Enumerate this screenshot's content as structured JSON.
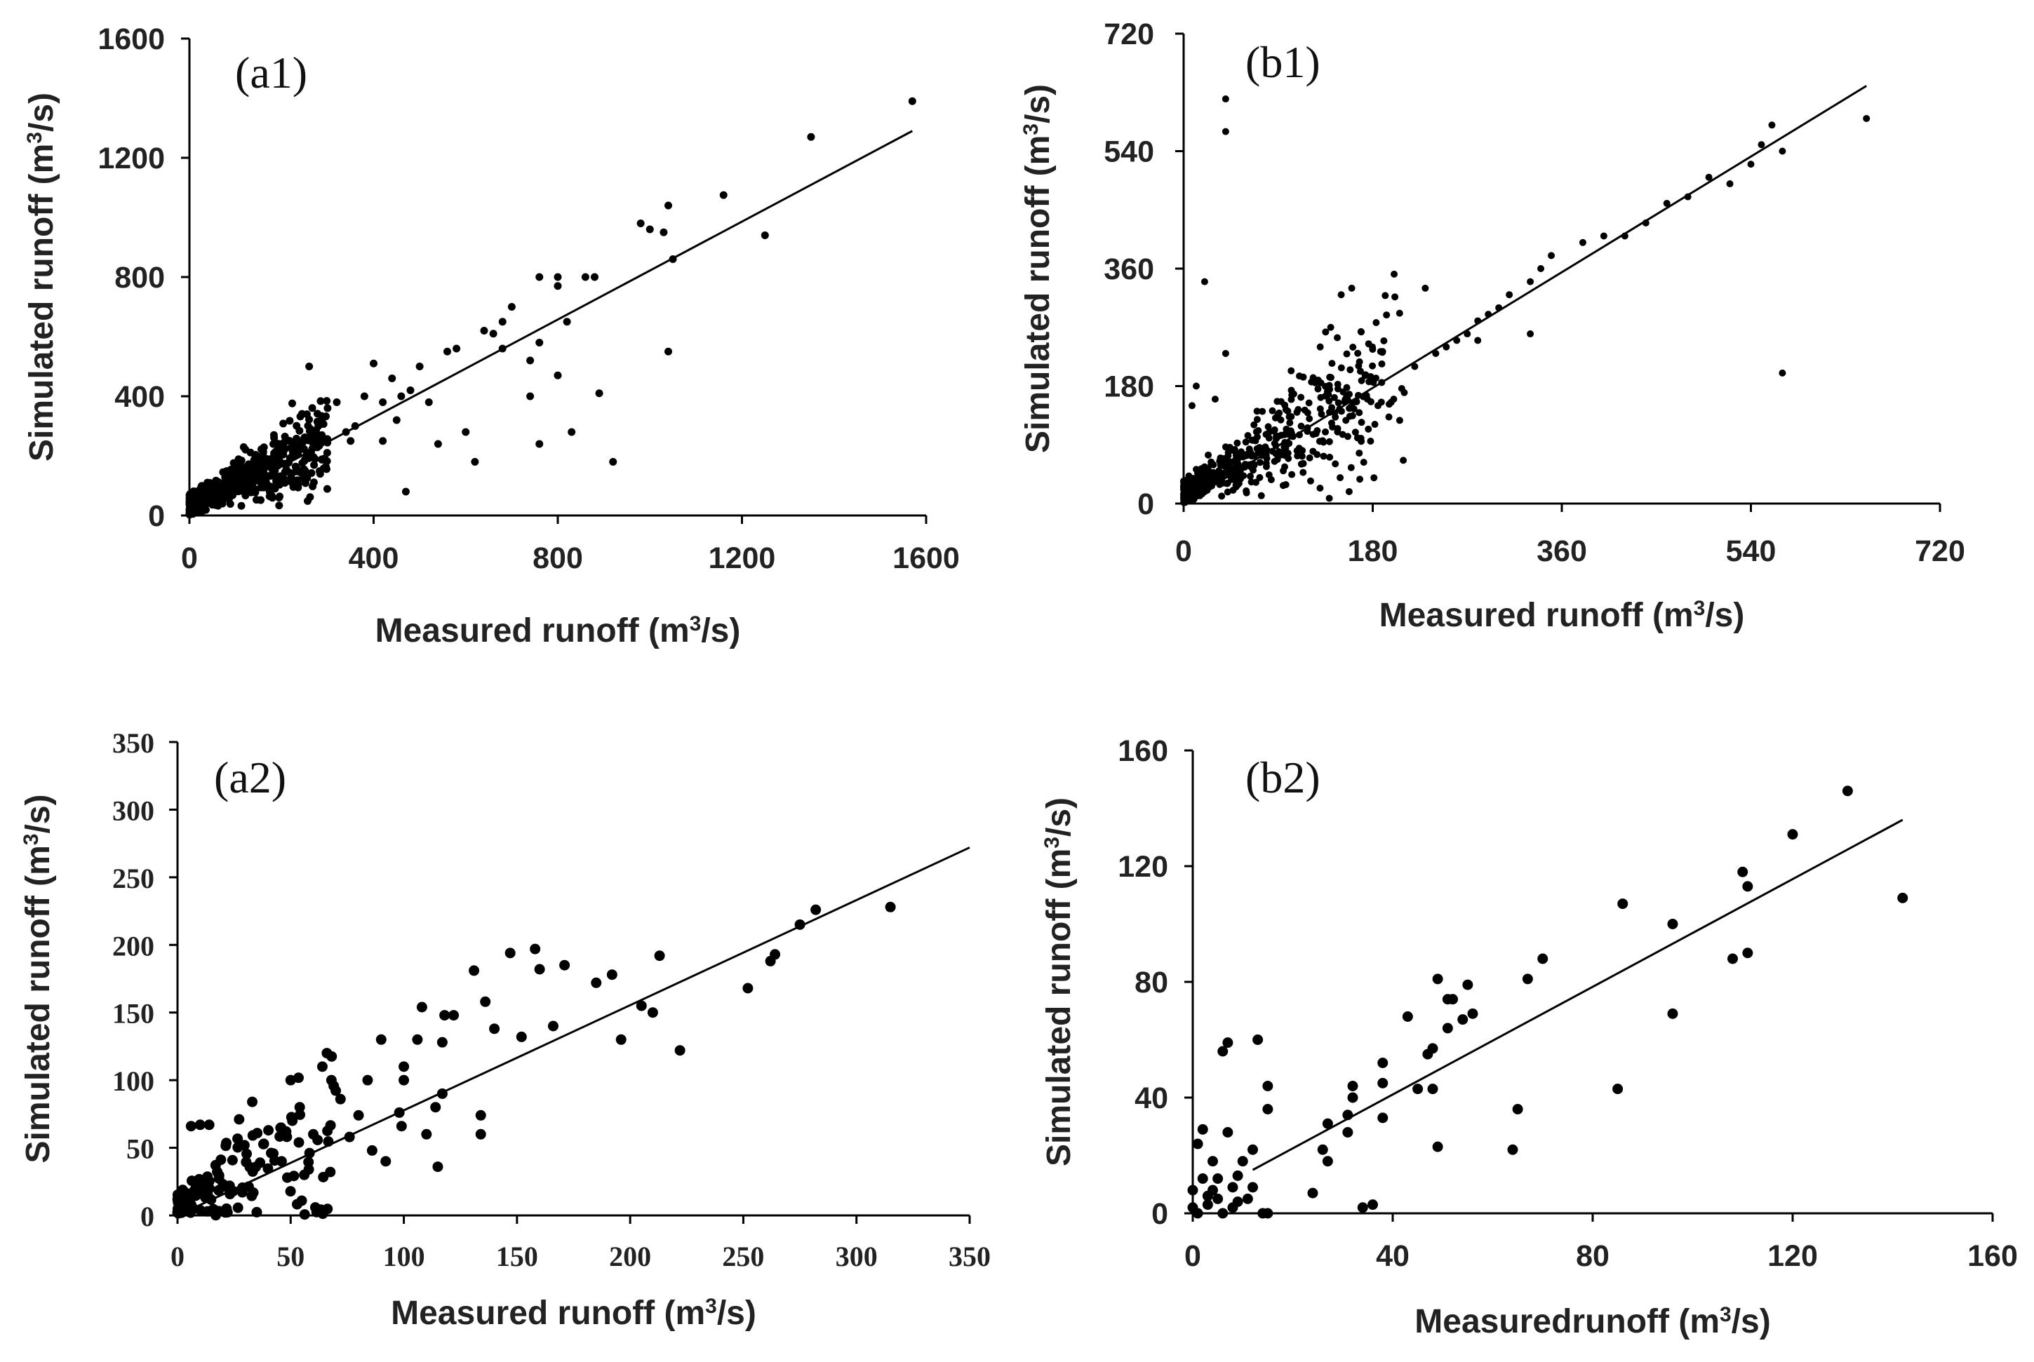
{
  "chart_data": [
    {
      "id": "a1",
      "type": "scatter",
      "panel_label": "(a1)",
      "xlabel": "Measured runoff (m",
      "ylabel": "Simulated runoff (m",
      "unit_suffix": "/s)",
      "unit_sup": "3",
      "xlim": [
        0,
        1600
      ],
      "ylim": [
        0,
        1600
      ],
      "xticks": [
        "0",
        "400",
        "800",
        "1200",
        "1600"
      ],
      "yticks": [
        "0",
        "400",
        "800",
        "1200",
        "1600"
      ],
      "fit_line": {
        "x": [
          0,
          1570
        ],
        "y": [
          0,
          1290
        ]
      },
      "cluster": {
        "count": 650,
        "x_max": 300,
        "slope": 0.82,
        "spread": 0.35,
        "seed": 11
      },
      "points": [
        [
          1570,
          1390
        ],
        [
          1350,
          1270
        ],
        [
          1160,
          1075
        ],
        [
          1250,
          940
        ],
        [
          1040,
          1040
        ],
        [
          1030,
          950
        ],
        [
          1000,
          960
        ],
        [
          980,
          980
        ],
        [
          1050,
          860
        ],
        [
          1040,
          550
        ],
        [
          920,
          180
        ],
        [
          890,
          410
        ],
        [
          880,
          800
        ],
        [
          860,
          800
        ],
        [
          800,
          800
        ],
        [
          800,
          770
        ],
        [
          760,
          800
        ],
        [
          820,
          650
        ],
        [
          800,
          470
        ],
        [
          760,
          580
        ],
        [
          740,
          520
        ],
        [
          740,
          400
        ],
        [
          760,
          240
        ],
        [
          830,
          280
        ],
        [
          700,
          700
        ],
        [
          680,
          650
        ],
        [
          660,
          610
        ],
        [
          640,
          620
        ],
        [
          600,
          280
        ],
        [
          620,
          180
        ],
        [
          580,
          560
        ],
        [
          560,
          550
        ],
        [
          540,
          240
        ],
        [
          500,
          500
        ],
        [
          480,
          420
        ],
        [
          470,
          80
        ],
        [
          460,
          400
        ],
        [
          420,
          380
        ],
        [
          440,
          460
        ],
        [
          400,
          510
        ],
        [
          380,
          400
        ],
        [
          360,
          300
        ],
        [
          340,
          280
        ],
        [
          320,
          380
        ],
        [
          300,
          360
        ],
        [
          260,
          500
        ],
        [
          280,
          300
        ],
        [
          350,
          250
        ],
        [
          420,
          250
        ],
        [
          450,
          320
        ],
        [
          520,
          380
        ],
        [
          680,
          560
        ]
      ]
    },
    {
      "id": "b1",
      "type": "scatter",
      "panel_label": "(b1)",
      "xlabel": "Measured runoff (m",
      "ylabel": "Simulated runoff (m",
      "unit_suffix": "/s)",
      "unit_sup": "3",
      "xlim": [
        0,
        720
      ],
      "ylim": [
        0,
        720
      ],
      "xticks": [
        "0",
        "180",
        "360",
        "540",
        "720"
      ],
      "yticks": [
        "0",
        "180",
        "360",
        "540",
        "720"
      ],
      "fit_line": {
        "x": [
          0,
          650
        ],
        "y": [
          0,
          640
        ]
      },
      "cluster": {
        "count": 520,
        "x_max": 210,
        "slope": 0.97,
        "spread": 0.4,
        "seed": 23
      },
      "points": [
        [
          650,
          590
        ],
        [
          560,
          580
        ],
        [
          550,
          550
        ],
        [
          570,
          540
        ],
        [
          540,
          520
        ],
        [
          520,
          490
        ],
        [
          500,
          500
        ],
        [
          480,
          470
        ],
        [
          460,
          460
        ],
        [
          440,
          430
        ],
        [
          420,
          410
        ],
        [
          400,
          410
        ],
        [
          380,
          400
        ],
        [
          350,
          380
        ],
        [
          340,
          360
        ],
        [
          330,
          340
        ],
        [
          310,
          320
        ],
        [
          300,
          300
        ],
        [
          290,
          290
        ],
        [
          280,
          280
        ],
        [
          270,
          260
        ],
        [
          260,
          250
        ],
        [
          250,
          240
        ],
        [
          240,
          230
        ],
        [
          230,
          330
        ],
        [
          220,
          210
        ],
        [
          210,
          170
        ],
        [
          200,
          160
        ],
        [
          185,
          150
        ],
        [
          175,
          160
        ],
        [
          160,
          330
        ],
        [
          150,
          320
        ],
        [
          140,
          270
        ],
        [
          130,
          240
        ],
        [
          120,
          70
        ],
        [
          570,
          200
        ],
        [
          330,
          260
        ],
        [
          280,
          250
        ],
        [
          40,
          620
        ],
        [
          40,
          570
        ],
        [
          20,
          340
        ],
        [
          40,
          230
        ],
        [
          12,
          180
        ],
        [
          8,
          150
        ],
        [
          30,
          160
        ]
      ]
    },
    {
      "id": "a2",
      "type": "scatter",
      "panel_label": "(a2)",
      "xlabel": "Measured runoff (m",
      "ylabel": "Simulated runoff (m",
      "unit_suffix": "/s)",
      "unit_sup": "3",
      "xlim": [
        0,
        350
      ],
      "ylim": [
        0,
        350
      ],
      "xticks": [
        "0",
        "50",
        "100",
        "150",
        "200",
        "250",
        "300",
        "350"
      ],
      "yticks": [
        "0",
        "50",
        "100",
        "150",
        "200",
        "250",
        "300",
        "350"
      ],
      "fit_line": {
        "x": [
          0,
          350
        ],
        "y": [
          0,
          272
        ]
      },
      "cluster": {
        "count": 140,
        "x_max": 70,
        "slope": 0.8,
        "spread": 0.9,
        "seed": 37
      },
      "points": [
        [
          315,
          228
        ],
        [
          282,
          226
        ],
        [
          275,
          215
        ],
        [
          264,
          193
        ],
        [
          262,
          188
        ],
        [
          252,
          168
        ],
        [
          222,
          122
        ],
        [
          213,
          192
        ],
        [
          210,
          150
        ],
        [
          205,
          155
        ],
        [
          196,
          130
        ],
        [
          192,
          178
        ],
        [
          185,
          172
        ],
        [
          171,
          185
        ],
        [
          166,
          140
        ],
        [
          160,
          182
        ],
        [
          158,
          197
        ],
        [
          152,
          132
        ],
        [
          147,
          194
        ],
        [
          140,
          138
        ],
        [
          136,
          158
        ],
        [
          134,
          74
        ],
        [
          134,
          60
        ],
        [
          131,
          181
        ],
        [
          122,
          148
        ],
        [
          118,
          148
        ],
        [
          117,
          128
        ],
        [
          117,
          90
        ],
        [
          115,
          36
        ],
        [
          114,
          80
        ],
        [
          110,
          60
        ],
        [
          108,
          154
        ],
        [
          106,
          130
        ],
        [
          100,
          110
        ],
        [
          100,
          100
        ],
        [
          99,
          66
        ],
        [
          98,
          76
        ],
        [
          92,
          40
        ],
        [
          90,
          130
        ],
        [
          86,
          48
        ],
        [
          84,
          100
        ],
        [
          80,
          74
        ],
        [
          76,
          58
        ],
        [
          72,
          86
        ],
        [
          68,
          100
        ],
        [
          66,
          120
        ],
        [
          64,
          110
        ],
        [
          60,
          60
        ],
        [
          58,
          34
        ],
        [
          56,
          30
        ],
        [
          54,
          80
        ],
        [
          50,
          100
        ],
        [
          48,
          62
        ],
        [
          46,
          40
        ],
        [
          10,
          67
        ],
        [
          14,
          67
        ],
        [
          6,
          66
        ]
      ]
    },
    {
      "id": "b2",
      "type": "scatter",
      "panel_label": "(b2)",
      "xlabel": "Measuredrunoff (m",
      "ylabel": "Simulated runoff (m",
      "unit_suffix": "/s)",
      "unit_sup": "3",
      "xlim": [
        0,
        160
      ],
      "ylim": [
        0,
        160
      ],
      "xticks": [
        "0",
        "40",
        "80",
        "120",
        "160"
      ],
      "yticks": [
        "0",
        "40",
        "80",
        "120",
        "160"
      ],
      "fit_line": {
        "x": [
          12,
          142
        ],
        "y": [
          15,
          136
        ]
      },
      "cluster": {
        "count": 0,
        "x_max": 0,
        "slope": 0,
        "spread": 0,
        "seed": 0
      },
      "points": [
        [
          131,
          146
        ],
        [
          142,
          109
        ],
        [
          120,
          131
        ],
        [
          111,
          113
        ],
        [
          110,
          118
        ],
        [
          111,
          90
        ],
        [
          108,
          88
        ],
        [
          96,
          100
        ],
        [
          96,
          69
        ],
        [
          86,
          107
        ],
        [
          85,
          43
        ],
        [
          70,
          88
        ],
        [
          67,
          81
        ],
        [
          65,
          36
        ],
        [
          64,
          22
        ],
        [
          55,
          79
        ],
        [
          56,
          69
        ],
        [
          54,
          67
        ],
        [
          52,
          74
        ],
        [
          51,
          74
        ],
        [
          51,
          64
        ],
        [
          49,
          81
        ],
        [
          48,
          57
        ],
        [
          48,
          43
        ],
        [
          49,
          23
        ],
        [
          47,
          55
        ],
        [
          45,
          43
        ],
        [
          43,
          68
        ],
        [
          38,
          33
        ],
        [
          38,
          45
        ],
        [
          38,
          52
        ],
        [
          36,
          3
        ],
        [
          34,
          2
        ],
        [
          32,
          44
        ],
        [
          32,
          40
        ],
        [
          31,
          34
        ],
        [
          31,
          28
        ],
        [
          27,
          31
        ],
        [
          27,
          18
        ],
        [
          26,
          22
        ],
        [
          24,
          7
        ],
        [
          15,
          44
        ],
        [
          15,
          36
        ],
        [
          15,
          0
        ],
        [
          14,
          0
        ],
        [
          13,
          60
        ],
        [
          12,
          9
        ],
        [
          10,
          18
        ],
        [
          9,
          13
        ],
        [
          8,
          9
        ],
        [
          7,
          59
        ],
        [
          6,
          56
        ],
        [
          7,
          28
        ],
        [
          5,
          12
        ],
        [
          4,
          18
        ],
        [
          3,
          6
        ],
        [
          2,
          29
        ],
        [
          1,
          24
        ],
        [
          0,
          8
        ],
        [
          0,
          2
        ],
        [
          1,
          0
        ],
        [
          3,
          3
        ],
        [
          5,
          5
        ],
        [
          9,
          4
        ],
        [
          6,
          0
        ],
        [
          2,
          12
        ],
        [
          4,
          8
        ],
        [
          11,
          5
        ],
        [
          8,
          2
        ],
        [
          12,
          22
        ]
      ]
    }
  ]
}
